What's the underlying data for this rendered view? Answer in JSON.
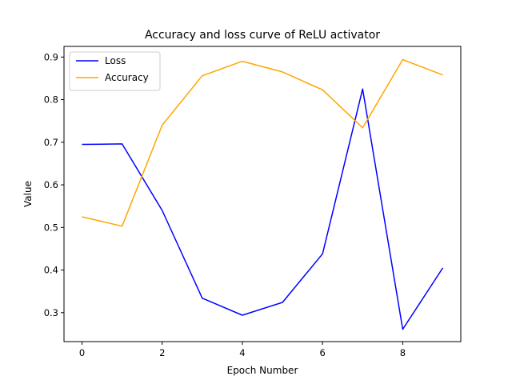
{
  "chart_data": {
    "type": "line",
    "title": "Accuracy and loss curve of ReLU activator",
    "xlabel": "Epoch Number",
    "ylabel": "Value",
    "x": [
      0,
      1,
      2,
      3,
      4,
      5,
      6,
      7,
      8,
      9
    ],
    "xlim": [
      -0.45,
      9.45
    ],
    "ylim": [
      0.232,
      0.925
    ],
    "xticks": [
      0,
      2,
      4,
      6,
      8
    ],
    "yticks": [
      0.3,
      0.4,
      0.5,
      0.6,
      0.7,
      0.8,
      0.9
    ],
    "grid": false,
    "legend_position": "top-left",
    "series": [
      {
        "name": "Loss",
        "color": "#0000ff",
        "values": [
          0.695,
          0.696,
          0.54,
          0.334,
          0.294,
          0.324,
          0.438,
          0.825,
          0.261,
          0.405
        ]
      },
      {
        "name": "Accuracy",
        "color": "#ffa500",
        "values": [
          0.525,
          0.503,
          0.74,
          0.856,
          0.89,
          0.865,
          0.823,
          0.734,
          0.894,
          0.858
        ]
      }
    ]
  }
}
